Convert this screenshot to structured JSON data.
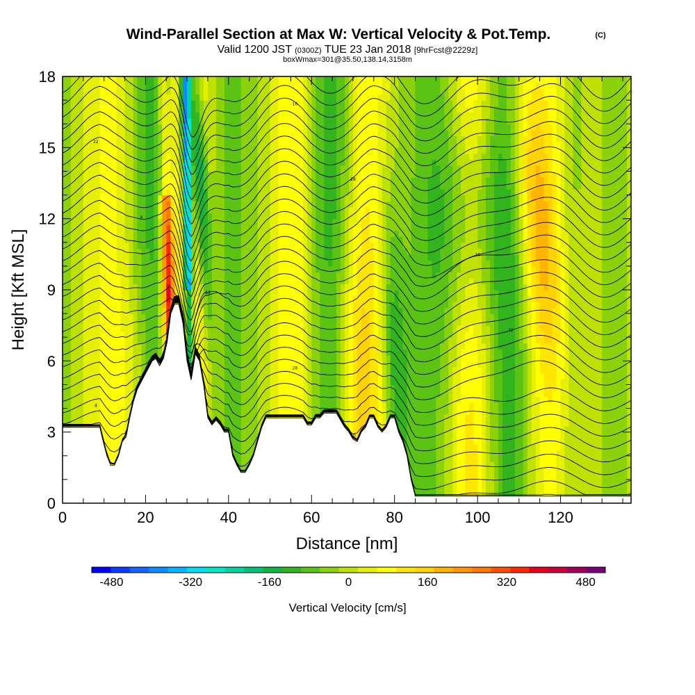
{
  "title": {
    "main": "Wind-Parallel Section at Max W: Vertical Velocity & Pot.Temp.",
    "copyright": "(C)",
    "valid_prefix": "Valid 1200 JST",
    "valid_utc": "(0300Z)",
    "valid_date": "TUE 23 Jan 2018",
    "forecast": "[9hrFcst@2229z]",
    "boxwmax": "boxWmax=301@35.50,138.14,3158m"
  },
  "chart_data": {
    "type": "heatmap",
    "xlabel": "Distance [nm]",
    "ylabel": "Height [Kft MSL]",
    "xlim": [
      0,
      137
    ],
    "ylim": [
      0,
      18
    ],
    "x_ticks": [
      "0",
      "20",
      "40",
      "60",
      "80",
      "100",
      "120"
    ],
    "y_ticks": [
      "0",
      "3",
      "6",
      "9",
      "12",
      "15",
      "18"
    ],
    "colorbar": {
      "title": "Vertical Velocity [cm/s]",
      "tick_labels": [
        "-480",
        "-320",
        "-160",
        "0",
        "160",
        "320",
        "480"
      ],
      "range": [
        -520,
        520
      ],
      "step": 40,
      "colors": [
        "#0000ff",
        "#0a3cff",
        "#1464ff",
        "#0a8cff",
        "#00b4ff",
        "#00dcf0",
        "#00e6c8",
        "#00d2a0",
        "#00c378",
        "#0fb446",
        "#32b41e",
        "#5ac314",
        "#8cd20a",
        "#bee100",
        "#e6f000",
        "#ffff00",
        "#ffe600",
        "#ffd200",
        "#ffb400",
        "#ff9600",
        "#ff7800",
        "#ff5000",
        "#ff2800",
        "#e6001e",
        "#c8003c",
        "#a0005a",
        "#780078"
      ]
    },
    "terrain_profile": {
      "x": [
        0,
        3,
        6,
        9,
        9.8,
        10.7,
        11.6,
        12.5,
        13.5,
        14.4,
        15.3,
        16.2,
        17.1,
        18.0,
        18.9,
        19.8,
        20.7,
        21.6,
        22.5,
        23.4,
        24.3,
        25.2,
        26.1,
        27.0,
        28.0,
        29.0,
        30.0,
        31.0,
        32.0,
        33.0,
        34.0,
        35.0,
        36.0,
        37.0,
        38.0,
        39.0,
        40.0,
        41.0,
        42.0,
        43.0,
        44.0,
        45.0,
        46.0,
        47.0,
        48.0,
        49.0,
        50.0,
        52.0,
        54.0,
        56.0,
        58.0,
        59.0,
        60.0,
        61.0,
        62.0,
        63.0,
        64.0,
        65.0,
        66.0,
        67.0,
        68.0,
        69.0,
        70.0,
        71.0,
        72.0,
        73.0,
        74.0,
        75.0,
        76.0,
        77.0,
        78.0,
        79.0,
        80.0,
        81.0,
        82.0,
        83.0,
        84.0,
        85.0,
        90.0,
        100.0,
        110.0,
        120.0,
        130.0,
        137.0
      ],
      "kft": [
        3.2,
        3.2,
        3.2,
        3.2,
        2.6,
        2.0,
        1.6,
        1.6,
        2.0,
        2.6,
        2.8,
        3.6,
        4.3,
        4.8,
        5.1,
        5.4,
        5.7,
        6.0,
        6.1,
        5.8,
        6.1,
        6.8,
        8.0,
        8.4,
        8.4,
        7.6,
        6.0,
        5.2,
        6.3,
        6.0,
        5.0,
        3.6,
        3.3,
        3.5,
        3.3,
        3.0,
        3.0,
        2.0,
        1.6,
        1.3,
        1.3,
        1.6,
        2.0,
        2.6,
        3.2,
        3.6,
        3.6,
        3.6,
        3.6,
        3.6,
        3.6,
        3.3,
        3.3,
        3.6,
        3.6,
        3.8,
        3.8,
        3.8,
        3.8,
        3.5,
        3.2,
        3.0,
        2.7,
        2.6,
        3.0,
        3.2,
        3.6,
        3.6,
        3.2,
        3.0,
        3.2,
        3.6,
        3.6,
        3.0,
        2.6,
        2.0,
        1.0,
        0.3,
        0.3,
        0.3,
        0.3,
        0.3,
        0.3,
        0.3
      ]
    },
    "theta_contour_labels": [
      "18",
      "16",
      "14",
      "12",
      "10",
      "8",
      "6",
      "4",
      "2",
      "0",
      "28",
      "26",
      "24",
      "22",
      "20"
    ]
  }
}
